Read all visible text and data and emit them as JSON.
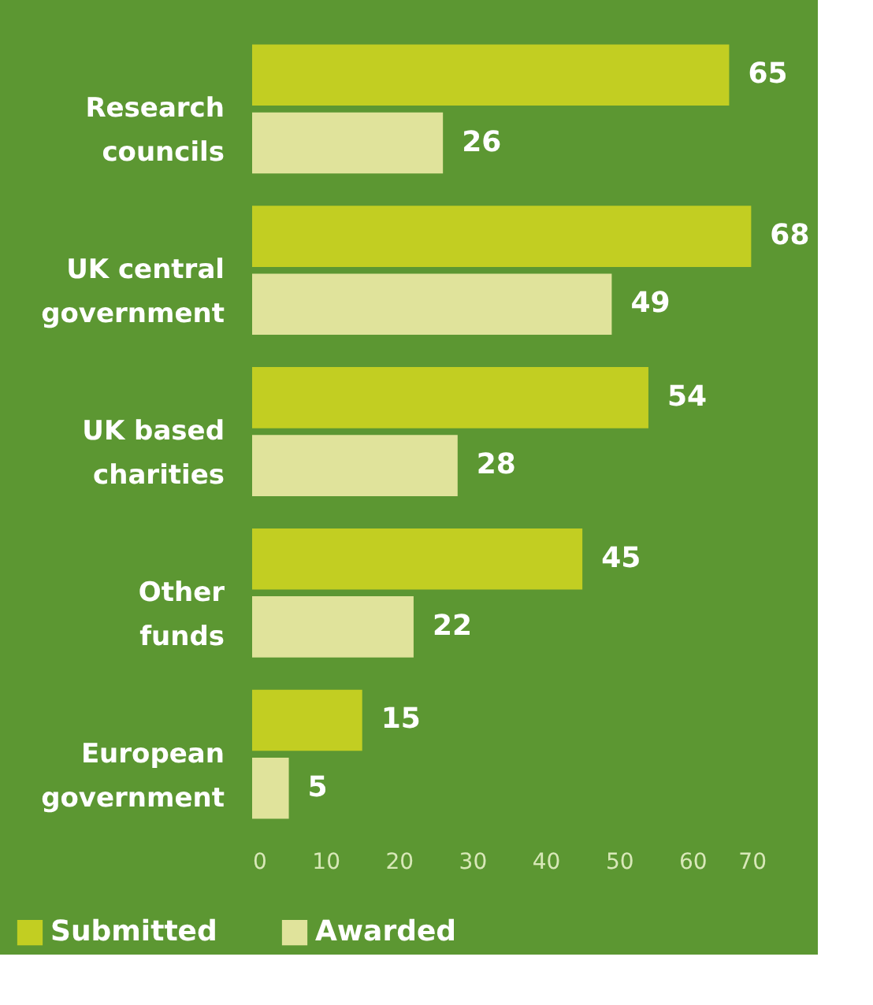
{
  "chart_data": {
    "type": "bar",
    "orientation": "horizontal",
    "categories": [
      "Research councils",
      "UK central government",
      "UK based charities",
      "Other funds",
      "European government"
    ],
    "series": [
      {
        "name": "Submitted",
        "color": "#c2ce22",
        "values": [
          65,
          68,
          54,
          45,
          15
        ]
      },
      {
        "name": "Awarded",
        "color": "#e0e39b",
        "values": [
          26,
          49,
          28,
          22,
          5
        ]
      }
    ],
    "xlim": [
      0,
      70
    ],
    "xticks": [
      0,
      10,
      20,
      30,
      40,
      50,
      60,
      70
    ],
    "data_labels": true,
    "grid": false,
    "legend": "bottom left"
  }
}
